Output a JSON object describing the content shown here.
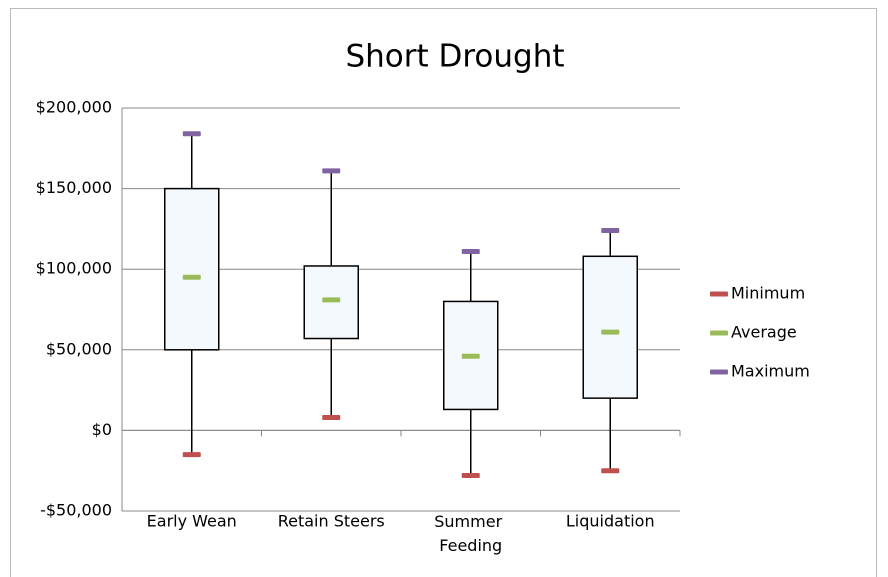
{
  "chart_data": {
    "type": "box",
    "title": "Short Drought",
    "categories": [
      "Early Wean",
      "Retain Steers",
      "Summer Feeding",
      "Liquidation"
    ],
    "box_bottom": [
      50000,
      57000,
      13000,
      20000
    ],
    "box_top": [
      150000,
      102000,
      80000,
      108000
    ],
    "box_color": "#f4f9fd",
    "series": [
      {
        "name": "Minimum",
        "color": "#c0504d",
        "values": [
          -15000,
          8000,
          -28000,
          -25000
        ]
      },
      {
        "name": "Average",
        "color": "#9bbb59",
        "values": [
          95000,
          81000,
          46000,
          61000
        ]
      },
      {
        "name": "Maximum",
        "color": "#8064a2",
        "values": [
          184000,
          161000,
          111000,
          124000
        ]
      }
    ],
    "ylim": [
      -50000,
      200000
    ],
    "yticks": [
      {
        "value": -50000,
        "label": "-$50,000"
      },
      {
        "value": 0,
        "label": "$0"
      },
      {
        "value": 50000,
        "label": "$50,000"
      },
      {
        "value": 100000,
        "label": "$100,000"
      },
      {
        "value": 150000,
        "label": "$150,000"
      },
      {
        "value": 200000,
        "label": "$200,000"
      }
    ],
    "grid": true,
    "legend": "right"
  }
}
